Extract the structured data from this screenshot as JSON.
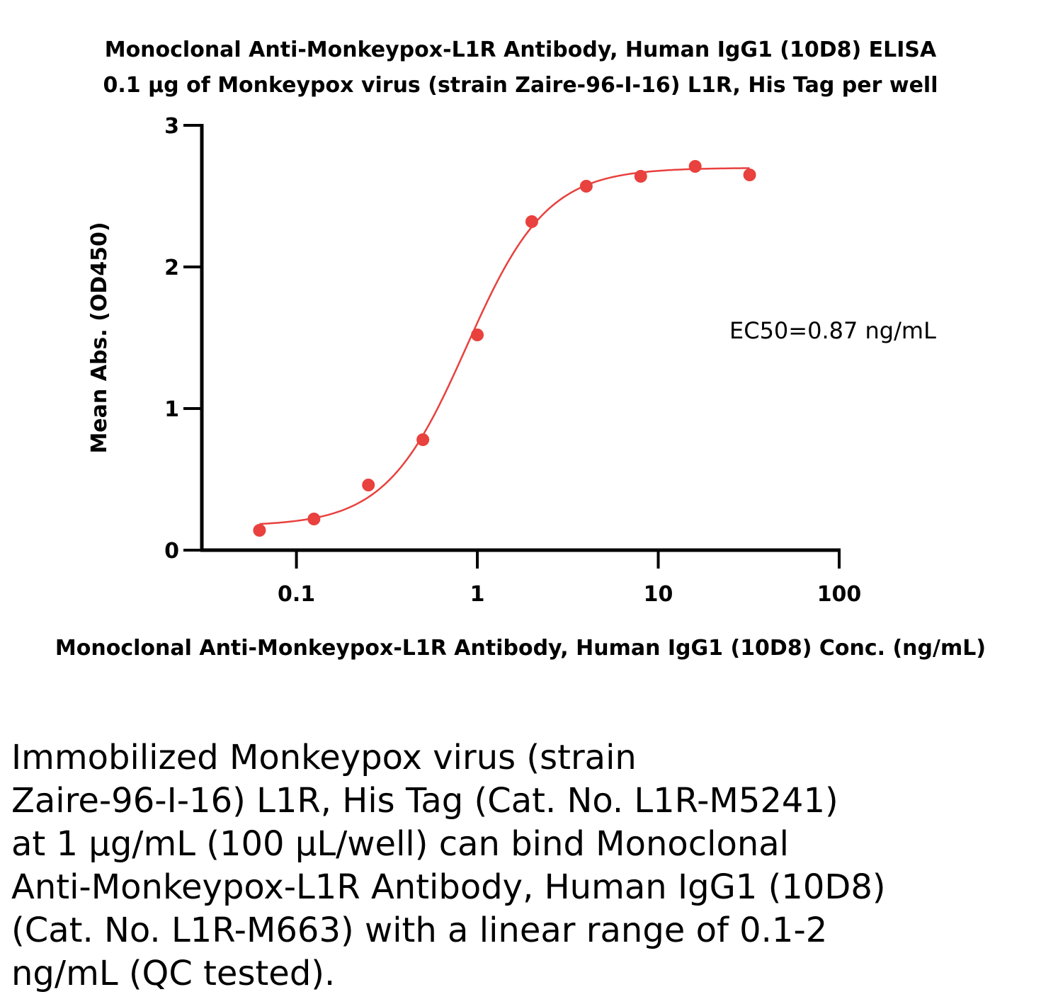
{
  "chart_data": {
    "type": "scatter",
    "title_lines": [
      "Monoclonal Anti-Monkeypox-L1R Antibody, Human IgG1 (10D8) ELISA",
      "0.1 µg of Monkeypox virus (strain Zaire-96-I-16) L1R, His Tag per well"
    ],
    "xlabel": "Monoclonal Anti-Monkeypox-L1R Antibody, Human IgG1 (10D8) Conc. (ng/mL)",
    "ylabel": "Mean Abs. (OD450)",
    "x_scale": "log",
    "xlim": [
      0.03,
      100
    ],
    "ylim": [
      0,
      3
    ],
    "x_ticks": [
      0.1,
      1,
      10,
      100
    ],
    "x_tick_labels": [
      "0.1",
      "1",
      "10",
      "100"
    ],
    "y_ticks": [
      0,
      1,
      2,
      3
    ],
    "y_tick_labels": [
      "0",
      "1",
      "2",
      "3"
    ],
    "grid": false,
    "series_color": "#e8413e",
    "series": [
      {
        "x": [
          0.0625,
          0.125,
          0.25,
          0.5,
          1,
          2,
          4,
          8,
          16,
          32
        ],
        "y": [
          0.14,
          0.22,
          0.46,
          0.78,
          1.52,
          2.32,
          2.57,
          2.64,
          2.71,
          2.65
        ]
      }
    ],
    "fit": {
      "model": "4PL",
      "bottom": 0.17,
      "top": 2.7,
      "ec50": 0.87,
      "hill": 1.95
    },
    "annotation": "EC50=0.87 ng/mL"
  },
  "caption_lines": [
    "Immobilized Monkeypox virus (strain",
    "Zaire-96-I-16) L1R, His Tag (Cat. No. L1R-M5241)",
    "at 1 µg/mL (100 µL/well) can bind Monoclonal",
    "Anti-Monkeypox-L1R Antibody, Human IgG1 (10D8)",
    "(Cat. No. L1R-M663) with a linear range of 0.1-2",
    "ng/mL (QC tested)."
  ]
}
